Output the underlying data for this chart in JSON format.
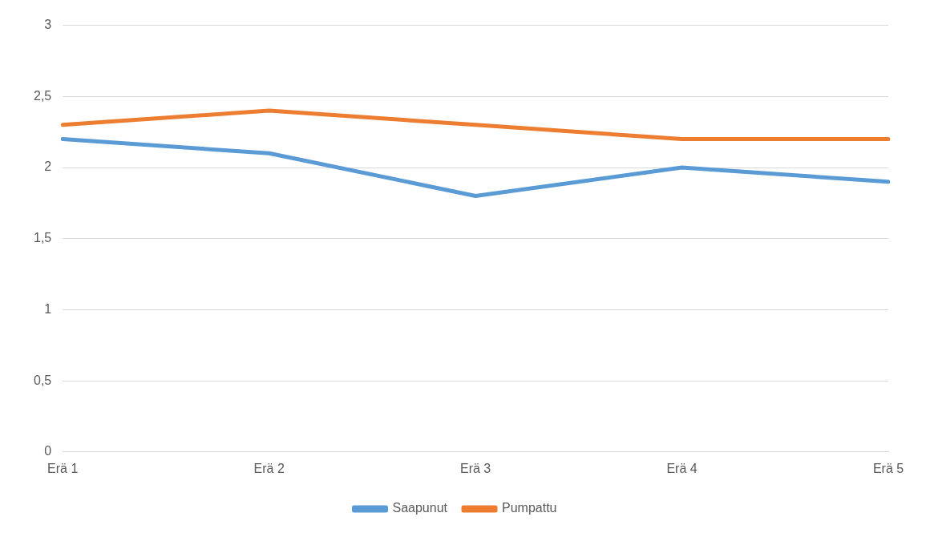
{
  "chart_data": {
    "type": "line",
    "categories": [
      "Erä 1",
      "Erä 2",
      "Erä 3",
      "Erä 4",
      "Erä 5"
    ],
    "series": [
      {
        "name": "Saapunut",
        "color": "#5b9bd5",
        "values": [
          2.2,
          2.1,
          1.8,
          2.0,
          1.9
        ]
      },
      {
        "name": "Pumpattu",
        "color": "#ed7d31",
        "values": [
          2.3,
          2.4,
          2.3,
          2.2,
          2.2
        ]
      }
    ],
    "ylim": [
      0,
      3
    ],
    "yticks": [
      0,
      {
        "value": 0.5,
        "label": "0,5"
      },
      1,
      {
        "value": 1.5,
        "label": "1,5"
      },
      2,
      {
        "value": 2.5,
        "label": "2,5"
      },
      3
    ],
    "grid": "y",
    "legend": "bottom",
    "marker": "none",
    "line_style": "solid"
  }
}
